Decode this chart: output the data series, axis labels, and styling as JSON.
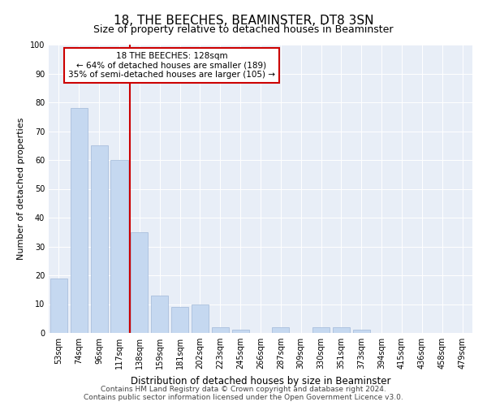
{
  "title": "18, THE BEECHES, BEAMINSTER, DT8 3SN",
  "subtitle": "Size of property relative to detached houses in Beaminster",
  "xlabel": "Distribution of detached houses by size in Beaminster",
  "ylabel": "Number of detached properties",
  "categories": [
    "53sqm",
    "74sqm",
    "96sqm",
    "117sqm",
    "138sqm",
    "159sqm",
    "181sqm",
    "202sqm",
    "223sqm",
    "245sqm",
    "266sqm",
    "287sqm",
    "309sqm",
    "330sqm",
    "351sqm",
    "373sqm",
    "394sqm",
    "415sqm",
    "436sqm",
    "458sqm",
    "479sqm"
  ],
  "values": [
    19,
    78,
    65,
    60,
    35,
    13,
    9,
    10,
    2,
    1,
    0,
    2,
    0,
    2,
    2,
    1,
    0,
    0,
    0,
    0,
    0
  ],
  "bar_color": "#c5d8f0",
  "bar_edge_color": "#a0b8d8",
  "vline_color": "#cc0000",
  "annotation_text": "18 THE BEECHES: 128sqm\n← 64% of detached houses are smaller (189)\n35% of semi-detached houses are larger (105) →",
  "annotation_box_color": "white",
  "annotation_box_edge_color": "#cc0000",
  "ylim": [
    0,
    100
  ],
  "yticks": [
    0,
    10,
    20,
    30,
    40,
    50,
    60,
    70,
    80,
    90,
    100
  ],
  "background_color": "#e8eef7",
  "footer1": "Contains HM Land Registry data © Crown copyright and database right 2024.",
  "footer2": "Contains public sector information licensed under the Open Government Licence v3.0.",
  "title_fontsize": 11,
  "subtitle_fontsize": 9,
  "xlabel_fontsize": 8.5,
  "ylabel_fontsize": 8,
  "tick_fontsize": 7,
  "annotation_fontsize": 7.5,
  "footer_fontsize": 6.5
}
